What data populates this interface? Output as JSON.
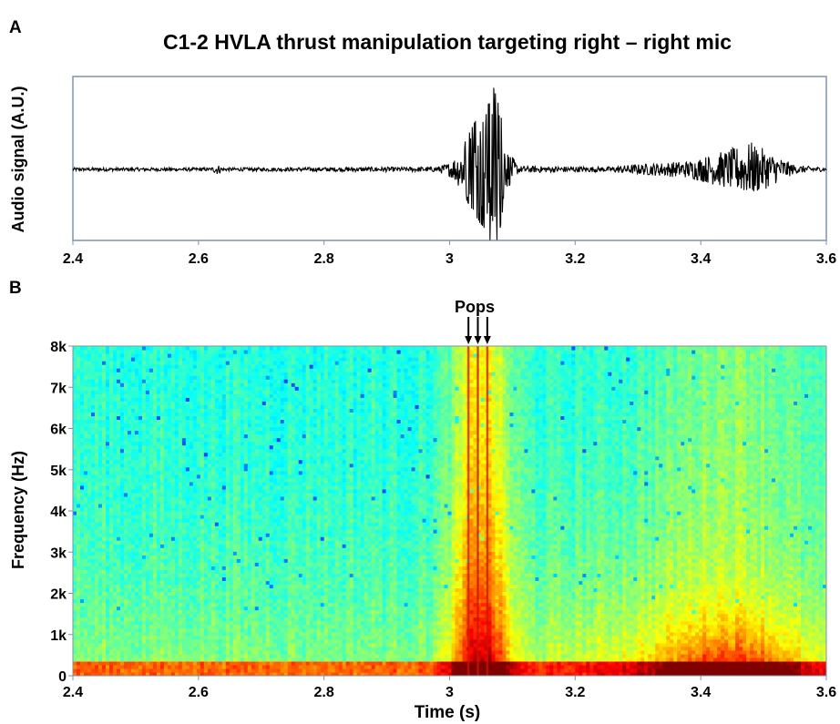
{
  "figure": {
    "title": "C1-2 HVLA thrust manipulation targeting right – right mic",
    "panel_a_label": "A",
    "panel_b_label": "B"
  },
  "chart_data": [
    {
      "type": "line",
      "panel": "A",
      "ylabel": "Audio signal (A.U.)",
      "xlabel": "",
      "xlim": [
        2.4,
        3.6
      ],
      "x_ticks": [
        2.4,
        2.6,
        2.8,
        3.0,
        3.2,
        3.4,
        3.6
      ],
      "x_tick_labels": [
        "2.4",
        "2.6",
        "2.8",
        "3",
        "3.2",
        "3.4",
        "3.6"
      ],
      "y_ticks_shown": false,
      "ylim": [
        -1,
        1
      ],
      "line_color": "#000000",
      "frame_color": "#7f93ad",
      "envelope": [
        {
          "x": 2.4,
          "amp": 0.02
        },
        {
          "x": 2.62,
          "amp": 0.02
        },
        {
          "x": 2.63,
          "amp": 0.06
        },
        {
          "x": 2.64,
          "amp": 0.02
        },
        {
          "x": 2.98,
          "amp": 0.03
        },
        {
          "x": 3.0,
          "amp": 0.08
        },
        {
          "x": 3.02,
          "amp": 0.25
        },
        {
          "x": 3.04,
          "amp": 0.55
        },
        {
          "x": 3.06,
          "amp": 0.72
        },
        {
          "x": 3.07,
          "amp": 0.95
        },
        {
          "x": 3.08,
          "amp": 0.7
        },
        {
          "x": 3.09,
          "amp": 0.25
        },
        {
          "x": 3.11,
          "amp": 0.04
        },
        {
          "x": 3.25,
          "amp": 0.03
        },
        {
          "x": 3.3,
          "amp": 0.06
        },
        {
          "x": 3.38,
          "amp": 0.1
        },
        {
          "x": 3.44,
          "amp": 0.22
        },
        {
          "x": 3.48,
          "amp": 0.32
        },
        {
          "x": 3.51,
          "amp": 0.2
        },
        {
          "x": 3.55,
          "amp": 0.05
        },
        {
          "x": 3.6,
          "amp": 0.02
        }
      ]
    },
    {
      "type": "heatmap",
      "panel": "B",
      "xlabel": "Time (s)",
      "ylabel": "Frequency (Hz)",
      "xlim": [
        2.4,
        3.6
      ],
      "ylim": [
        0,
        8000
      ],
      "x_ticks": [
        2.4,
        2.6,
        2.8,
        3.0,
        3.2,
        3.4,
        3.6
      ],
      "x_tick_labels": [
        "2.4",
        "2.6",
        "2.8",
        "3",
        "3.2",
        "3.4",
        "3.6"
      ],
      "y_ticks": [
        0,
        1000,
        2000,
        3000,
        4000,
        5000,
        6000,
        7000,
        8000
      ],
      "y_tick_labels": [
        "0",
        "1k",
        "2k",
        "3k",
        "4k",
        "5k",
        "6k",
        "7k",
        "8k"
      ],
      "colormap": "jet",
      "annotation": {
        "text": "Pops",
        "x": [
          3.03,
          3.045,
          3.06
        ]
      },
      "energy_regions": [
        {
          "t_start": 2.4,
          "t_end": 3.6,
          "f_max": 400,
          "level": 0.8
        },
        {
          "t_start": 3.0,
          "t_end": 3.1,
          "f_max": 8000,
          "level": 0.6
        },
        {
          "t_start": 3.25,
          "t_end": 3.55,
          "f_max": 1500,
          "level": 0.75
        }
      ]
    }
  ]
}
